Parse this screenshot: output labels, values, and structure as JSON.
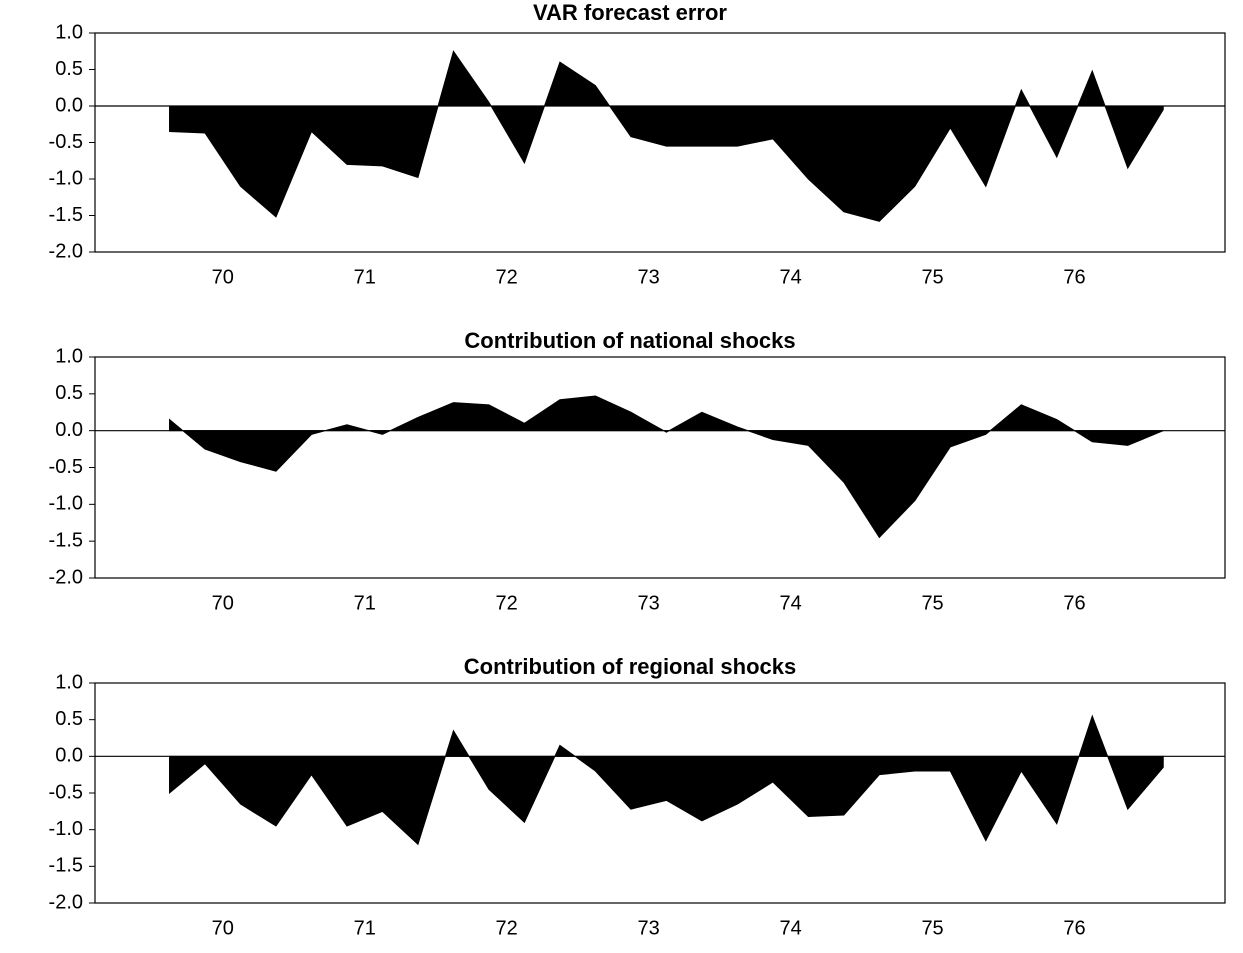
{
  "chart_data": [
    {
      "type": "area",
      "title": "VAR forecast error",
      "color": "#000000",
      "x": [
        70.125,
        70.375,
        70.625,
        70.875,
        71.125,
        71.375,
        71.625,
        71.875,
        72.125,
        72.375,
        72.625,
        72.875,
        73.125,
        73.375,
        73.625,
        73.875,
        74.125,
        74.375,
        74.625,
        74.875,
        75.125,
        75.375,
        75.625,
        75.875,
        76.125,
        76.375,
        76.625,
        76.875,
        77.125
      ],
      "values": [
        -0.35,
        -0.37,
        -1.1,
        -1.52,
        -0.35,
        -0.8,
        -0.82,
        -0.98,
        0.75,
        0.05,
        -0.78,
        0.6,
        0.28,
        -0.42,
        -0.55,
        -0.55,
        -0.55,
        -0.45,
        -1.0,
        -1.45,
        -1.58,
        -1.1,
        -0.3,
        -1.1,
        0.22,
        -0.7,
        0.48,
        -0.85,
        -0.05
      ],
      "xlim": [
        69.6,
        77.56
      ],
      "xticks": [
        {
          "value": 70.5,
          "label": "70"
        },
        {
          "value": 71.5,
          "label": "71"
        },
        {
          "value": 72.5,
          "label": "72"
        },
        {
          "value": 73.5,
          "label": "73"
        },
        {
          "value": 74.5,
          "label": "74"
        },
        {
          "value": 75.5,
          "label": "75"
        },
        {
          "value": 76.5,
          "label": "76"
        }
      ],
      "ylim": [
        -2,
        1
      ],
      "yticks": [
        {
          "value": 1,
          "label": "1.0"
        },
        {
          "value": 0.5,
          "label": "0.5"
        },
        {
          "value": 0,
          "label": "0.0"
        },
        {
          "value": -0.5,
          "label": "-0.5"
        },
        {
          "value": -1,
          "label": "-1.0"
        },
        {
          "value": -1.5,
          "label": "-1.5"
        },
        {
          "value": -2,
          "label": "-2.0"
        }
      ]
    },
    {
      "type": "area",
      "title": "Contribution of national shocks",
      "color": "#000000",
      "x": [
        70.125,
        70.375,
        70.625,
        70.875,
        71.125,
        71.375,
        71.625,
        71.875,
        72.125,
        72.375,
        72.625,
        72.875,
        73.125,
        73.375,
        73.625,
        73.875,
        74.125,
        74.375,
        74.625,
        74.875,
        75.125,
        75.375,
        75.625,
        75.875,
        76.125,
        76.375,
        76.625,
        76.875,
        77.125
      ],
      "values": [
        0.15,
        -0.25,
        -0.42,
        -0.55,
        -0.05,
        0.08,
        -0.05,
        0.18,
        0.38,
        0.35,
        0.1,
        0.42,
        0.47,
        0.25,
        -0.02,
        0.25,
        0.05,
        -0.12,
        -0.2,
        -0.7,
        -1.45,
        -0.95,
        -0.22,
        -0.05,
        0.35,
        0.15,
        -0.15,
        -0.2,
        0.0
      ],
      "xlim": [
        69.6,
        77.56
      ],
      "xticks": [
        {
          "value": 70.5,
          "label": "70"
        },
        {
          "value": 71.5,
          "label": "71"
        },
        {
          "value": 72.5,
          "label": "72"
        },
        {
          "value": 73.5,
          "label": "73"
        },
        {
          "value": 74.5,
          "label": "74"
        },
        {
          "value": 75.5,
          "label": "75"
        },
        {
          "value": 76.5,
          "label": "76"
        }
      ],
      "ylim": [
        -2,
        1
      ],
      "yticks": [
        {
          "value": 1,
          "label": "1.0"
        },
        {
          "value": 0.5,
          "label": "0.5"
        },
        {
          "value": 0,
          "label": "0.0"
        },
        {
          "value": -0.5,
          "label": "-0.5"
        },
        {
          "value": -1,
          "label": "-1.0"
        },
        {
          "value": -1.5,
          "label": "-1.5"
        },
        {
          "value": -2,
          "label": "-2.0"
        }
      ]
    },
    {
      "type": "area",
      "title": "Contribution of regional shocks",
      "color": "#000000",
      "x": [
        70.125,
        70.375,
        70.625,
        70.875,
        71.125,
        71.375,
        71.625,
        71.875,
        72.125,
        72.375,
        72.625,
        72.875,
        73.125,
        73.375,
        73.625,
        73.875,
        74.125,
        74.375,
        74.625,
        74.875,
        75.125,
        75.375,
        75.625,
        75.875,
        76.125,
        76.375,
        76.625,
        76.875,
        77.125
      ],
      "values": [
        -0.5,
        -0.1,
        -0.65,
        -0.95,
        -0.25,
        -0.95,
        -0.75,
        -1.2,
        0.35,
        -0.45,
        -0.9,
        0.15,
        -0.2,
        -0.72,
        -0.6,
        -0.88,
        -0.65,
        -0.35,
        -0.82,
        -0.8,
        -0.25,
        -0.2,
        -0.2,
        -1.15,
        -0.2,
        -0.92,
        0.55,
        -0.72,
        -0.15
      ],
      "xlim": [
        69.6,
        77.56
      ],
      "xticks": [
        {
          "value": 70.5,
          "label": "70"
        },
        {
          "value": 71.5,
          "label": "71"
        },
        {
          "value": 72.5,
          "label": "72"
        },
        {
          "value": 73.5,
          "label": "73"
        },
        {
          "value": 74.5,
          "label": "74"
        },
        {
          "value": 75.5,
          "label": "75"
        },
        {
          "value": 76.5,
          "label": "76"
        }
      ],
      "ylim": [
        -2,
        1
      ],
      "yticks": [
        {
          "value": 1,
          "label": "1.0"
        },
        {
          "value": 0.5,
          "label": "0.5"
        },
        {
          "value": 0,
          "label": "0.0"
        },
        {
          "value": -0.5,
          "label": "-0.5"
        },
        {
          "value": -1,
          "label": "-1.0"
        },
        {
          "value": -1.5,
          "label": "-1.5"
        },
        {
          "value": -2,
          "label": "-2.0"
        }
      ]
    }
  ]
}
